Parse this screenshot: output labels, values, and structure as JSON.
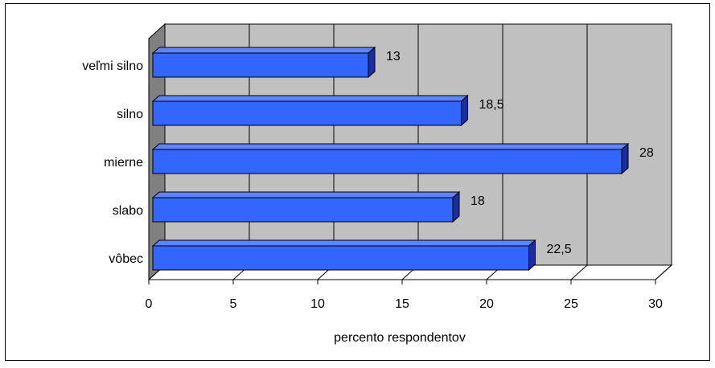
{
  "chart_data": {
    "type": "bar",
    "orientation": "horizontal",
    "style": "3d",
    "categories": [
      "veľmi silno",
      "silno",
      "mierne",
      "slabo",
      "vôbec"
    ],
    "values": [
      13,
      18.5,
      28,
      18,
      22.5
    ],
    "value_labels": [
      "13",
      "18,5",
      "28",
      "18",
      "22,5"
    ],
    "xlabel": "percento respondentov",
    "ylabel": "",
    "title": "",
    "xlim": [
      0,
      30
    ],
    "x_ticks": [
      0,
      5,
      10,
      15,
      20,
      25,
      30
    ],
    "grid": "vertical",
    "legend": "none",
    "colors": {
      "bar_front": "#3366ff",
      "bar_top": "#5c85ff",
      "bar_side": "#1a2f99",
      "plot_wall": "#c0c0c0",
      "side_wall": "#808080",
      "floor": "#ffffff"
    }
  }
}
